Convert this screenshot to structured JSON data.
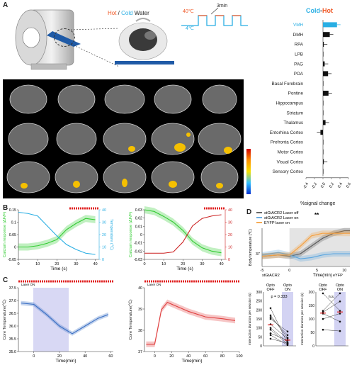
{
  "panels": {
    "A": "A",
    "B": "B",
    "C": "C",
    "D": "D"
  },
  "legend_water": {
    "hot": "Hot",
    "slash": " / ",
    "cold": "Cold",
    "suffix": " Water"
  },
  "stim_schematic": {
    "high": "40℃",
    "low": "4℃",
    "period": "3min"
  },
  "bar_title": {
    "cold": "Cold",
    "dash": "-",
    "hot": "Hot"
  },
  "colors": {
    "hot": "#f05a28",
    "cold": "#29aee3",
    "green": "#33cc33",
    "red": "#cc2222",
    "grey": "#555555",
    "orange": "#f5a040",
    "blue": "#5aa6e0"
  },
  "chart_data": [
    {
      "type": "bar",
      "title": "Cold-Hot",
      "categories": [
        "VMH",
        "DMH",
        "RPA",
        "LPB",
        "PAG",
        "POA",
        "Basal Forebrain",
        "Pontine",
        "Hippocampus",
        "Striatum",
        "Thalamus",
        "Entorhina Cortex",
        "Prefronta Cortex",
        "Motor Cortex",
        "Visual Cortex",
        "Sensory Cortex"
      ],
      "values": [
        0.33,
        0.16,
        0.02,
        0.01,
        0.04,
        0.12,
        0.0,
        0.13,
        0.0,
        0.0,
        0.06,
        -0.06,
        0.0,
        0.0,
        0.02,
        0.0
      ],
      "xlabel": "%signal change",
      "xticks": [
        "-0.4",
        "-0.2",
        "0.0",
        "0.2",
        "0.4",
        "0.6"
      ],
      "xlim": [
        -0.4,
        0.6
      ]
    },
    {
      "type": "line",
      "panel": "B-left",
      "xlabel": "Time (s)",
      "ylabel_left": "Calcium response (ΔF/F)",
      "ylabel_right": "Temperature (℃)",
      "xticks": [
        "0",
        "10",
        "20",
        "30",
        "40"
      ],
      "yticks_left": [
        "-0.05",
        "0",
        "0.05",
        "0.1",
        "0.15"
      ],
      "yticks_right": [
        "0",
        "10",
        "20",
        "30",
        "40"
      ],
      "series": [
        {
          "x": [
            0,
            5,
            10,
            15,
            20,
            25,
            30,
            35,
            40
          ],
          "values": [
            0.0,
            0.0,
            0.005,
            0.015,
            0.03,
            0.07,
            0.095,
            0.115,
            0.11
          ]
        },
        {
          "x": [
            0,
            5,
            10,
            15,
            20,
            25,
            30,
            35,
            40
          ],
          "values": [
            38,
            37,
            35,
            27,
            19,
            12,
            8,
            5,
            4
          ]
        }
      ]
    },
    {
      "type": "line",
      "panel": "B-right",
      "xlabel": "Time (s)",
      "ylabel_left": "Calcium response (ΔF/F)",
      "yticks_left": [
        "-0.03",
        "-0.02",
        "-0.01",
        "0",
        "0.01",
        "0.02",
        "0.03"
      ],
      "yticks_right": [
        "0",
        "10",
        "20",
        "30",
        "40"
      ],
      "xticks": [
        "0",
        "10",
        "20",
        "30",
        "40"
      ],
      "series": [
        {
          "x": [
            0,
            5,
            10,
            15,
            20,
            25,
            30,
            35,
            40
          ],
          "values": [
            0.03,
            0.028,
            0.022,
            0.015,
            0.005,
            -0.008,
            -0.016,
            -0.02,
            -0.022
          ]
        },
        {
          "x": [
            0,
            5,
            10,
            15,
            20,
            25,
            30,
            35,
            40
          ],
          "values": [
            5,
            5,
            5,
            6,
            14,
            27,
            33,
            35,
            36
          ]
        }
      ]
    },
    {
      "type": "line",
      "panel": "C-left",
      "annotation": "Laser ON",
      "xlabel": "Time(min)",
      "ylabel": "Core Temperature(℃)",
      "xticks": [
        "0",
        "20",
        "40",
        "60"
      ],
      "yticks": [
        "35.0",
        "35.5",
        "36.0",
        "36.5",
        "37.0",
        "37.5"
      ],
      "series": [
        {
          "x": [
            -10,
            0,
            10,
            20,
            30,
            40,
            50,
            58
          ],
          "values": [
            36.9,
            36.85,
            36.45,
            36.0,
            35.7,
            36.0,
            36.3,
            36.45
          ]
        }
      ]
    },
    {
      "type": "line",
      "panel": "C-right",
      "annotation": "Laser ON",
      "xlabel": "Time(min)",
      "ylabel": "Core Temperature(℃)",
      "xticks": [
        "0",
        "20",
        "40",
        "60",
        "80",
        "100"
      ],
      "yticks": [
        "37",
        "38",
        "39",
        "40"
      ],
      "series": [
        {
          "x": [
            -10,
            0,
            3,
            8,
            15,
            25,
            40,
            60,
            80,
            95
          ],
          "values": [
            37.1,
            37.1,
            37.8,
            39.0,
            39.4,
            39.2,
            38.9,
            38.6,
            38.5,
            38.4
          ]
        }
      ]
    },
    {
      "type": "line",
      "panel": "D-top",
      "ylabel": "Body temperature (℃)",
      "xlabel": "Time(min)",
      "xticks": [
        "-5",
        "0",
        "5",
        "10"
      ],
      "yticks": [
        "37"
      ],
      "legend_position": "top-left",
      "significance": "**",
      "below_labels": [
        "stGtACR2",
        "eYFP"
      ],
      "series": [
        {
          "name": "stGtACR2 Laser off",
          "x": [
            -5,
            -2,
            0,
            2,
            4,
            6,
            8,
            10,
            11
          ],
          "values": [
            36.8,
            36.9,
            36.8,
            37.0,
            37.6,
            38.2,
            38.6,
            38.8,
            38.8
          ]
        },
        {
          "name": "stGtACR2 Laser on",
          "x": [
            -5,
            -2,
            0,
            2,
            4,
            6,
            8,
            10,
            11
          ],
          "values": [
            36.9,
            37.1,
            36.9,
            36.6,
            36.7,
            36.9,
            37.0,
            37.0,
            37.0
          ]
        },
        {
          "name": "EYFP laser on",
          "x": [
            -5,
            -2,
            0,
            2,
            4,
            6,
            8,
            10,
            11
          ],
          "values": [
            36.8,
            36.9,
            36.9,
            37.6,
            38.4,
            38.6,
            38.6,
            38.6,
            38.6
          ]
        }
      ]
    },
    {
      "type": "scatter",
      "panel": "D-bottom-left",
      "ylabel": "Interaction duration per session (s)",
      "categories": [
        "Opto\nOFF",
        "Opto\nON"
      ],
      "yticks": [
        "0",
        "50",
        "100",
        "150",
        "200",
        "250",
        "300"
      ],
      "annotation": "p = 0.333",
      "pairs": [
        [
          210,
          15
        ],
        [
          170,
          45
        ],
        [
          160,
          60
        ],
        [
          150,
          80
        ],
        [
          120,
          40
        ],
        [
          100,
          20
        ],
        [
          90,
          10
        ],
        [
          70,
          30
        ],
        [
          60,
          5
        ],
        [
          40,
          15
        ]
      ]
    },
    {
      "type": "scatter",
      "panel": "D-bottom-right",
      "ylabel": "Interaction duration per session (s)",
      "categories": [
        "Opto\nOFF",
        "Opto\nON"
      ],
      "yticks": [
        "0",
        "50",
        "100",
        "150",
        "200"
      ],
      "annotation": "n.s.",
      "pairs": [
        [
          195,
          130
        ],
        [
          130,
          195
        ],
        [
          125,
          165
        ],
        [
          120,
          90
        ],
        [
          100,
          120
        ],
        [
          60,
          55
        ]
      ]
    }
  ]
}
